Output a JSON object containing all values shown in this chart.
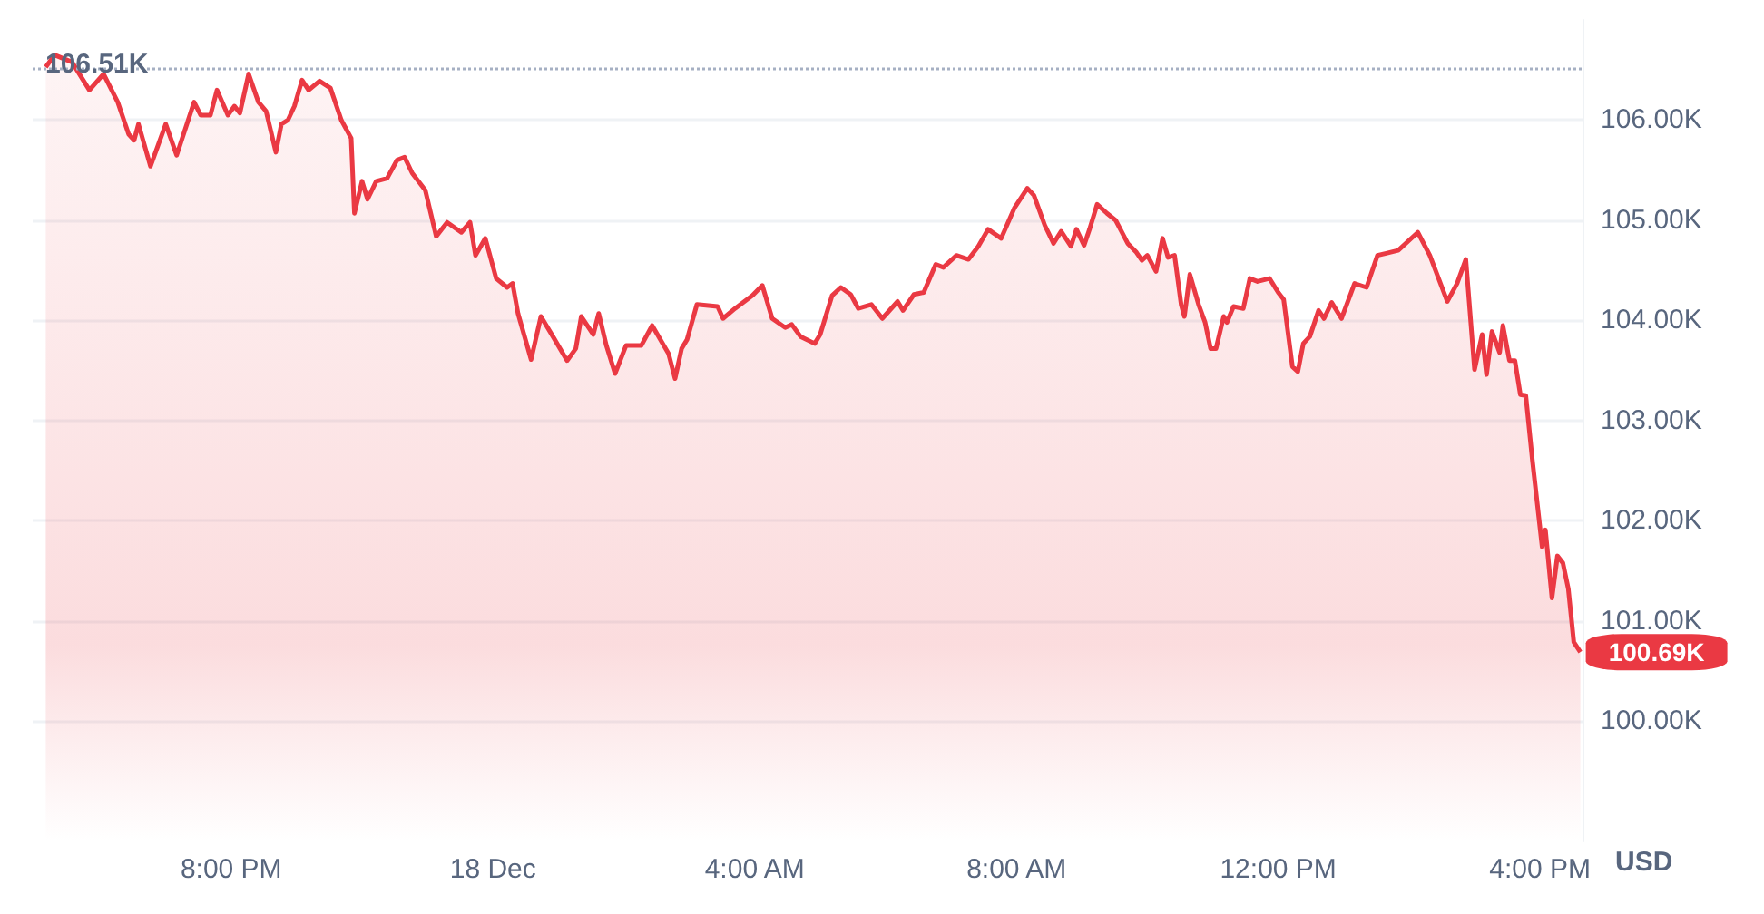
{
  "chart_data": {
    "type": "area",
    "ylabel": "USD",
    "x": [
      "--12-17T17:10",
      "--12-17T17:18",
      "--12-17T17:34",
      "--12-17T17:50",
      "--12-17T18:03",
      "--12-17T18:16",
      "--12-17T18:26",
      "--12-17T18:31",
      "--12-17T18:35",
      "--12-17T18:46",
      "--12-17T18:53",
      "--12-17T19:00",
      "--12-17T19:10",
      "--12-17T19:26",
      "--12-17T19:32",
      "--12-17T19:41",
      "--12-17T19:47",
      "--12-17T19:57",
      "--12-17T20:03",
      "--12-17T20:08",
      "--12-17T20:16",
      "--12-17T20:25",
      "--12-17T20:32",
      "--12-17T20:41",
      "--12-17T20:46",
      "--12-17T20:52",
      "--12-17T20:58",
      "--12-17T21:05",
      "--12-17T21:11",
      "--12-17T21:21",
      "--12-17T21:31",
      "--12-17T21:41",
      "--12-17T21:50",
      "--12-17T21:53",
      "--12-17T22:00",
      "--12-17T22:05",
      "--12-17T22:13",
      "--12-17T22:23",
      "--12-17T22:32",
      "--12-17T22:39",
      "--12-17T22:46",
      "--12-17T22:58",
      "--12-17T23:08",
      "--12-17T23:18",
      "--12-17T23:31",
      "--12-17T23:39",
      "--12-17T23:44",
      "--12-17T23:53",
      "--12-18T00:03",
      "--12-18T00:13",
      "--12-18T00:18",
      "--12-18T00:23",
      "--12-18T00:35",
      "--12-18T00:44",
      "--12-18T00:55",
      "--12-18T01:08",
      "--12-18T01:16",
      "--12-18T01:21",
      "--12-18T01:32",
      "--12-18T01:37",
      "--12-18T01:44",
      "--12-18T01:52",
      "--12-18T02:02",
      "--12-18T02:16",
      "--12-18T02:26",
      "--12-18T02:41",
      "--12-18T02:47",
      "--12-18T02:53",
      "--12-18T02:58",
      "--12-18T03:07",
      "--12-18T03:26",
      "--12-18T03:31",
      "--12-18T03:42",
      "--12-18T03:58",
      "--12-18T04:07",
      "--12-18T04:16",
      "--12-18T04:28",
      "--12-18T04:34",
      "--12-18T04:42",
      "--12-18T04:55",
      "--12-18T05:00",
      "--12-18T05:11",
      "--12-18T05:19",
      "--12-18T05:28",
      "--12-18T05:35",
      "--12-18T05:47",
      "--12-18T05:57",
      "--12-18T06:11",
      "--12-18T06:16",
      "--12-18T06:26",
      "--12-18T06:35",
      "--12-18T06:46",
      "--12-18T06:53",
      "--12-18T07:05",
      "--12-18T07:16",
      "--12-18T07:25",
      "--12-18T07:34",
      "--12-18T07:46",
      "--12-18T07:58",
      "--12-18T08:10",
      "--12-18T08:16",
      "--12-18T08:26",
      "--12-18T08:34",
      "--12-18T08:41",
      "--12-18T08:50",
      "--12-18T08:55",
      "--12-18T09:02",
      "--12-18T09:07",
      "--12-18T09:14",
      "--12-18T09:23",
      "--12-18T09:31",
      "--12-18T09:42",
      "--12-18T09:50",
      "--12-18T09:55",
      "--12-18T10:00",
      "--12-18T10:08",
      "--12-18T10:14",
      "--12-18T10:19",
      "--12-18T10:25",
      "--12-18T10:31",
      "--12-18T10:34",
      "--12-18T10:39",
      "--12-18T10:47",
      "--12-18T10:53",
      "--12-18T10:58",
      "--12-18T11:03",
      "--12-18T11:10",
      "--12-18T11:13",
      "--12-18T11:19",
      "--12-18T11:28",
      "--12-18T11:34",
      "--12-18T11:41",
      "--12-18T11:52",
      "--12-18T12:00",
      "--12-18T12:05",
      "--12-18T12:13",
      "--12-18T12:18",
      "--12-18T12:23",
      "--12-18T12:29",
      "--12-18T12:37",
      "--12-18T12:42",
      "--12-18T12:49",
      "--12-18T12:58",
      "--12-18T13:10",
      "--12-18T13:21",
      "--12-18T13:31",
      "--12-18T13:50",
      "--12-18T14:08",
      "--12-18T14:19",
      "--12-18T14:35",
      "--12-18T14:44",
      "--12-18T14:52",
      "--12-18T15:00",
      "--12-18T15:07",
      "--12-18T15:11",
      "--12-18T15:16",
      "--12-18T15:23",
      "--12-18T15:26",
      "--12-18T15:32",
      "--12-18T15:37",
      "--12-18T15:42",
      "--12-18T15:47",
      "--12-18T15:53",
      "--12-18T16:02",
      "--12-18T16:05",
      "--12-18T16:11",
      "--12-18T16:16",
      "--12-18T16:21",
      "--12-18T16:26",
      "--12-18T16:31",
      "--12-18T16:37"
    ],
    "series": [
      {
        "color": "#ea3943",
        "values": [
          106.53,
          106.65,
          106.58,
          106.3,
          106.46,
          106.18,
          105.86,
          105.8,
          105.96,
          105.54,
          105.75,
          105.96,
          105.65,
          106.18,
          106.05,
          106.05,
          106.3,
          106.05,
          106.14,
          106.07,
          106.46,
          106.18,
          106.09,
          105.68,
          105.96,
          106.0,
          106.14,
          106.4,
          106.3,
          106.39,
          106.32,
          106.0,
          105.82,
          105.07,
          105.39,
          105.21,
          105.39,
          105.42,
          105.6,
          105.63,
          105.47,
          105.3,
          104.84,
          104.98,
          104.88,
          104.98,
          104.65,
          104.82,
          104.42,
          104.33,
          104.37,
          104.07,
          103.61,
          104.04,
          103.84,
          103.6,
          103.72,
          104.04,
          103.86,
          104.07,
          103.75,
          103.47,
          103.75,
          103.75,
          103.95,
          103.67,
          103.42,
          103.72,
          103.81,
          104.16,
          104.14,
          104.02,
          104.12,
          104.25,
          104.35,
          104.02,
          103.93,
          103.96,
          103.84,
          103.77,
          103.86,
          104.25,
          104.33,
          104.26,
          104.12,
          104.16,
          104.02,
          104.19,
          104.1,
          104.26,
          104.28,
          104.56,
          104.53,
          104.65,
          104.61,
          104.74,
          104.91,
          104.82,
          105.12,
          105.32,
          105.25,
          104.95,
          104.77,
          104.89,
          104.74,
          104.91,
          104.75,
          104.91,
          105.16,
          105.07,
          105.0,
          104.77,
          104.68,
          104.6,
          104.65,
          104.49,
          104.82,
          104.63,
          104.65,
          104.16,
          104.04,
          104.46,
          104.16,
          103.98,
          103.72,
          103.72,
          104.04,
          103.98,
          104.14,
          104.12,
          104.42,
          104.39,
          104.42,
          104.28,
          104.21,
          103.54,
          103.49,
          103.77,
          103.84,
          104.1,
          104.02,
          104.18,
          104.02,
          104.37,
          104.33,
          104.65,
          104.7,
          104.88,
          104.65,
          104.19,
          104.37,
          104.61,
          103.51,
          103.86,
          103.46,
          103.89,
          103.68,
          103.95,
          103.6,
          103.6,
          103.26,
          103.25,
          102.61,
          101.74,
          101.91,
          101.23,
          101.65,
          101.58,
          101.32,
          100.79,
          100.69
        ]
      }
    ],
    "xlim": [
      "--12-17T16:58",
      "--12-18T16:39"
    ],
    "xticks": [
      {
        "value": "--12-17T20:00",
        "label": "8:00 PM"
      },
      {
        "value": "--12-18T00:00",
        "label": "18 Dec"
      },
      {
        "value": "--12-18T04:00",
        "label": "4:00 AM"
      },
      {
        "value": "--12-18T08:00",
        "label": "8:00 AM"
      },
      {
        "value": "--12-18T12:00",
        "label": "12:00 PM"
      },
      {
        "value": "--12-18T16:00",
        "label": "4:00 PM"
      }
    ],
    "ylim": [
      98.8,
      107
    ],
    "yticks": [
      {
        "value": 100,
        "label": "100.00K"
      },
      {
        "value": 101,
        "label": "101.00K"
      },
      {
        "value": 102,
        "label": "102.00K"
      },
      {
        "value": 103,
        "label": "103.00K"
      },
      {
        "value": 104,
        "label": "104.00K"
      },
      {
        "value": 105,
        "label": "105.00K"
      },
      {
        "value": 106,
        "label": "106.00K"
      }
    ],
    "grid": "y",
    "marker": "none",
    "line_style": "solid",
    "ref_lines": [
      {
        "axis": "y",
        "value": 106.51,
        "label": "106.51K",
        "color": "#a6b0c3",
        "line_style": "dotted"
      }
    ],
    "annotations": [
      {
        "text": "100.69K",
        "x": "--12-18T16:37",
        "y": 100.69
      }
    ]
  }
}
